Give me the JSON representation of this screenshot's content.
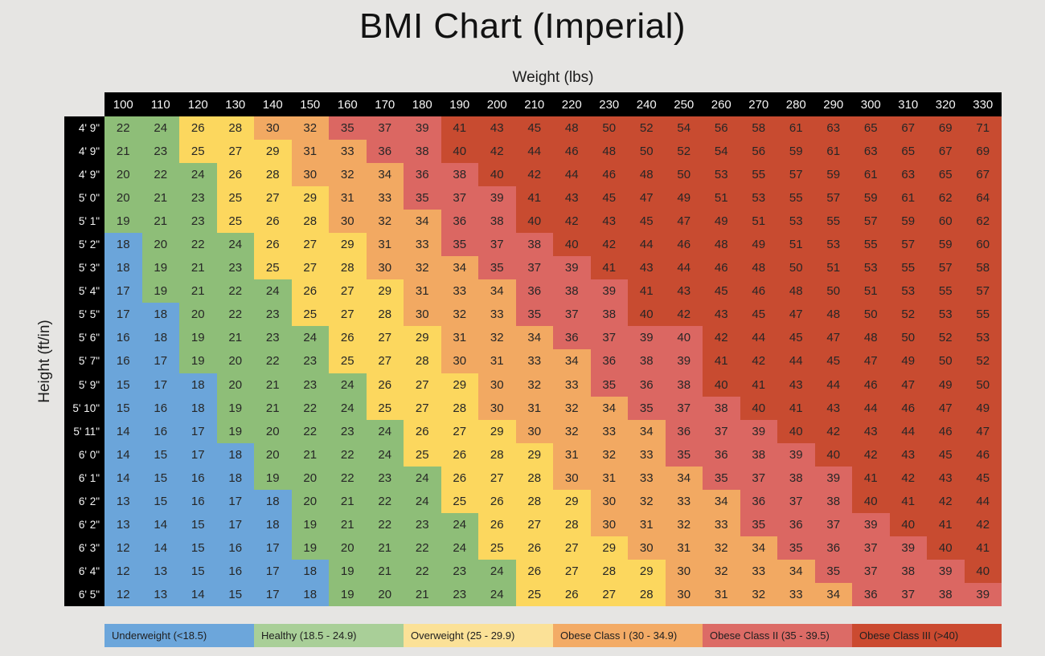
{
  "page": {
    "title": "BMI Chart (Imperial)",
    "background_color": "#e6e5e3",
    "header_bar_color": "#000000",
    "header_text_color": "#f4f4f4",
    "cell_text_color": "#262626"
  },
  "axes": {
    "x_label": "Weight (lbs)",
    "y_label": "Height (ft/in)"
  },
  "chart_data": {
    "type": "heatmap",
    "title": "BMI Chart (Imperial)",
    "xlabel": "Weight (lbs)",
    "ylabel": "Height (ft/in)",
    "columns_weights_lbs": [
      100,
      110,
      120,
      130,
      140,
      150,
      160,
      170,
      180,
      190,
      200,
      210,
      220,
      230,
      240,
      250,
      260,
      270,
      280,
      290,
      300,
      310,
      320,
      330
    ],
    "rows_heights": [
      "4' 9\"",
      "4' 9\"",
      "4' 9\"",
      "5' 0\"",
      "5' 1\"",
      "5' 2\"",
      "5' 3\"",
      "5' 4\"",
      "5' 5\"",
      "5' 6\"",
      "5' 7\"",
      "5' 9\"",
      "5' 10\"",
      "5' 11\"",
      "6' 0\"",
      "6' 1\"",
      "6' 2\"",
      "6' 2\"",
      "6' 3\"",
      "6' 4\"",
      "6' 5\""
    ],
    "values": [
      [
        22,
        24,
        26,
        28,
        30,
        32,
        35,
        37,
        39,
        41,
        43,
        45,
        48,
        50,
        52,
        54,
        56,
        58,
        61,
        63,
        65,
        67,
        69,
        71
      ],
      [
        21,
        23,
        25,
        27,
        29,
        31,
        33,
        36,
        38,
        40,
        42,
        44,
        46,
        48,
        50,
        52,
        54,
        56,
        59,
        61,
        63,
        65,
        67,
        69
      ],
      [
        20,
        22,
        24,
        26,
        28,
        30,
        32,
        34,
        36,
        38,
        40,
        42,
        44,
        46,
        48,
        50,
        53,
        55,
        57,
        59,
        61,
        63,
        65,
        67
      ],
      [
        20,
        21,
        23,
        25,
        27,
        29,
        31,
        33,
        35,
        37,
        39,
        41,
        43,
        45,
        47,
        49,
        51,
        53,
        55,
        57,
        59,
        61,
        62,
        64
      ],
      [
        19,
        21,
        23,
        25,
        26,
        28,
        30,
        32,
        34,
        36,
        38,
        40,
        42,
        43,
        45,
        47,
        49,
        51,
        53,
        55,
        57,
        59,
        60,
        62
      ],
      [
        18,
        20,
        22,
        24,
        26,
        27,
        29,
        31,
        33,
        35,
        37,
        38,
        40,
        42,
        44,
        46,
        48,
        49,
        51,
        53,
        55,
        57,
        59,
        60
      ],
      [
        18,
        19,
        21,
        23,
        25,
        27,
        28,
        30,
        32,
        34,
        35,
        37,
        39,
        41,
        43,
        44,
        46,
        48,
        50,
        51,
        53,
        55,
        57,
        58
      ],
      [
        17,
        19,
        21,
        22,
        24,
        26,
        27,
        29,
        31,
        33,
        34,
        36,
        38,
        39,
        41,
        43,
        45,
        46,
        48,
        50,
        51,
        53,
        55,
        57
      ],
      [
        17,
        18,
        20,
        22,
        23,
        25,
        27,
        28,
        30,
        32,
        33,
        35,
        37,
        38,
        40,
        42,
        43,
        45,
        47,
        48,
        50,
        52,
        53,
        55
      ],
      [
        16,
        18,
        19,
        21,
        23,
        24,
        26,
        27,
        29,
        31,
        32,
        34,
        36,
        37,
        39,
        40,
        42,
        44,
        45,
        47,
        48,
        50,
        52,
        53
      ],
      [
        16,
        17,
        19,
        20,
        22,
        23,
        25,
        27,
        28,
        30,
        31,
        33,
        34,
        36,
        38,
        39,
        41,
        42,
        44,
        45,
        47,
        49,
        50,
        52
      ],
      [
        15,
        17,
        18,
        20,
        21,
        23,
        24,
        26,
        27,
        29,
        30,
        32,
        33,
        35,
        36,
        38,
        40,
        41,
        43,
        44,
        46,
        47,
        49,
        50
      ],
      [
        15,
        16,
        18,
        19,
        21,
        22,
        24,
        25,
        27,
        28,
        30,
        31,
        32,
        34,
        35,
        37,
        38,
        40,
        41,
        43,
        44,
        46,
        47,
        49
      ],
      [
        14,
        16,
        17,
        19,
        20,
        22,
        23,
        24,
        26,
        27,
        29,
        30,
        32,
        33,
        34,
        36,
        37,
        39,
        40,
        42,
        43,
        44,
        46,
        47
      ],
      [
        14,
        15,
        17,
        18,
        20,
        21,
        22,
        24,
        25,
        26,
        28,
        29,
        31,
        32,
        33,
        35,
        36,
        38,
        39,
        40,
        42,
        43,
        45,
        46
      ],
      [
        14,
        15,
        16,
        18,
        19,
        20,
        22,
        23,
        24,
        26,
        27,
        28,
        30,
        31,
        33,
        34,
        35,
        37,
        38,
        39,
        41,
        42,
        43,
        45
      ],
      [
        13,
        15,
        16,
        17,
        18,
        20,
        21,
        22,
        24,
        25,
        26,
        28,
        29,
        30,
        32,
        33,
        34,
        36,
        37,
        38,
        40,
        41,
        42,
        44
      ],
      [
        13,
        14,
        15,
        17,
        18,
        19,
        21,
        22,
        23,
        24,
        26,
        27,
        28,
        30,
        31,
        32,
        33,
        35,
        36,
        37,
        39,
        40,
        41,
        42
      ],
      [
        12,
        14,
        15,
        16,
        17,
        19,
        20,
        21,
        22,
        24,
        25,
        26,
        27,
        29,
        30,
        31,
        32,
        34,
        35,
        36,
        37,
        39,
        40,
        41
      ],
      [
        12,
        13,
        15,
        16,
        17,
        18,
        19,
        21,
        22,
        23,
        24,
        26,
        27,
        28,
        29,
        30,
        32,
        33,
        34,
        35,
        37,
        38,
        39,
        40
      ],
      [
        12,
        13,
        14,
        15,
        17,
        18,
        19,
        20,
        21,
        23,
        24,
        25,
        26,
        27,
        28,
        30,
        31,
        32,
        33,
        34,
        36,
        37,
        38,
        39
      ]
    ],
    "categories": [
      {
        "id": "underweight",
        "label": "Underweight (<18.5)",
        "upper_bound": 18.5,
        "cell_color": "#6ba5da",
        "legend_color": "#6ca6db"
      },
      {
        "id": "healthy",
        "label": "Healthy (18.5 - 24.9)",
        "upper_bound": 25,
        "cell_color": "#8ebe78",
        "legend_color": "#a9cf98"
      },
      {
        "id": "overweight",
        "label": "Overweight (25 - 29.9)",
        "upper_bound": 30,
        "cell_color": "#fcd75e",
        "legend_color": "#fbe197"
      },
      {
        "id": "obese1",
        "label": "Obese Class I (30 - 34.9)",
        "upper_bound": 35,
        "cell_color": "#f2a962",
        "legend_color": "#f3ab66"
      },
      {
        "id": "obese2",
        "label": "Obese Class II (35 - 39.5)",
        "upper_bound": 40,
        "cell_color": "#db6762",
        "legend_color": "#dc6b66"
      },
      {
        "id": "obese3",
        "label": "Obese Class III (>40)",
        "upper_bound": 1000,
        "cell_color": "#c84b30",
        "legend_color": "#cb4a30"
      }
    ],
    "cell_category_overrides": [
      {
        "row": 9,
        "col": 15,
        "category": "obese2"
      }
    ],
    "legend_position": "bottom",
    "grid": false
  }
}
